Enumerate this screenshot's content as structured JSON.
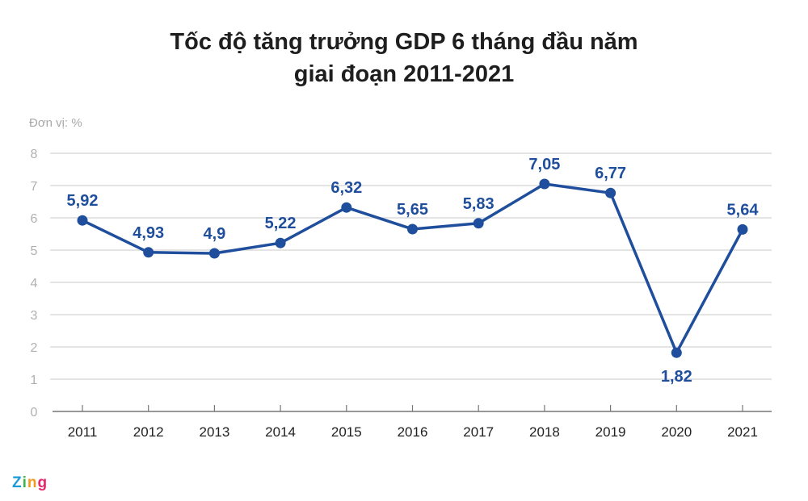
{
  "chart_data": {
    "type": "line",
    "title_line1": "Tốc độ tăng trưởng GDP 6 tháng đầu năm",
    "title_line2": "giai đoạn 2011-2021",
    "unit_label": "Đơn vị: %",
    "categories": [
      "2011",
      "2012",
      "2013",
      "2014",
      "2015",
      "2016",
      "2017",
      "2018",
      "2019",
      "2020",
      "2021"
    ],
    "values": [
      5.92,
      4.93,
      4.9,
      5.22,
      6.32,
      5.65,
      5.83,
      7.05,
      6.77,
      1.82,
      5.64
    ],
    "data_labels": [
      "5,92",
      "4,93",
      "4,9",
      "5,22",
      "6,32",
      "5,65",
      "5,83",
      "7,05",
      "6,77",
      "1,82",
      "5,64"
    ],
    "ylim": [
      0,
      8
    ],
    "yticks": [
      "0",
      "1",
      "2",
      "3",
      "4",
      "5",
      "6",
      "7",
      "8"
    ],
    "grid": true,
    "line_color": "#1f4e9c",
    "tick_color": "#b0b0b0"
  },
  "logo": {
    "text": [
      "Z",
      "i",
      "n",
      "g"
    ],
    "colors": [
      "#1a9ad6",
      "#3bb54a",
      "#f39a1e",
      "#e5286d"
    ]
  }
}
